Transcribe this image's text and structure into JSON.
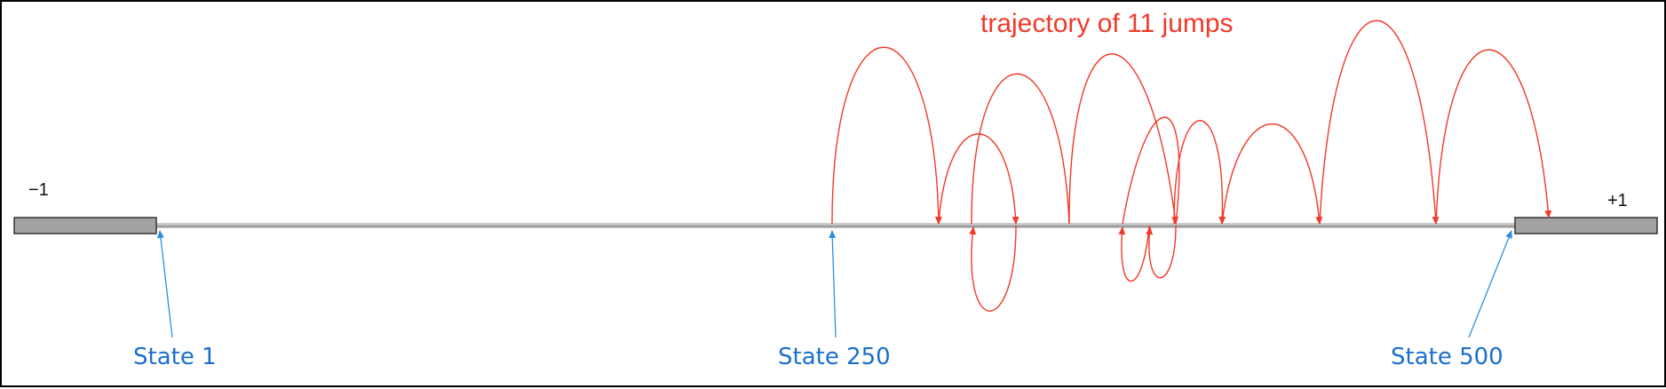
{
  "diagram": {
    "title": "trajectory of 11 jumps",
    "left_end_label": "−1",
    "right_end_label": "+1",
    "states": {
      "first": "State 1",
      "middle": "State 250",
      "last": "State 500"
    },
    "jump_count": 11,
    "colors": {
      "trajectory": "#f03a2a",
      "state_pointer": "#2f8fdd",
      "state_text": "#1a6fcf",
      "line": "#9a9a9a",
      "end_box": "#a3a3a3"
    }
  }
}
